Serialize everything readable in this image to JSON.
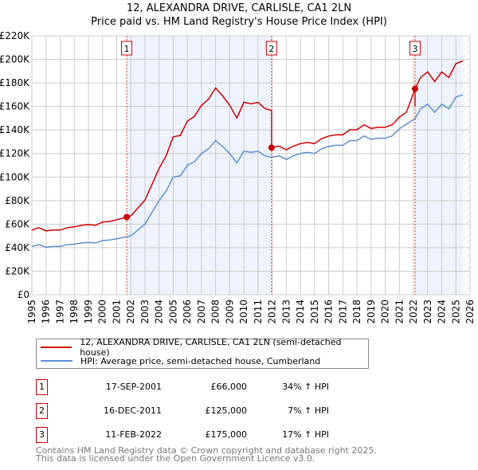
{
  "title": "12, ALEXANDRA DRIVE, CARLISLE, CA1 2LN",
  "subtitle": "Price paid vs. HM Land Registry's House Price Index (HPI)",
  "chart_data": {
    "type": "line",
    "xlim": [
      1995,
      2026
    ],
    "ylim": [
      0,
      220000
    ],
    "xticks": [
      "1995",
      "1996",
      "1997",
      "1998",
      "1999",
      "2000",
      "2001",
      "2002",
      "2003",
      "2004",
      "2005",
      "2006",
      "2007",
      "2008",
      "2009",
      "2010",
      "2011",
      "2012",
      "2013",
      "2014",
      "2015",
      "2016",
      "2017",
      "2018",
      "2019",
      "2020",
      "2021",
      "2022",
      "2023",
      "2024",
      "2025",
      "2026"
    ],
    "yticks": [
      "£0",
      "£20K",
      "£40K",
      "£60K",
      "£80K",
      "£100K",
      "£120K",
      "£140K",
      "£160K",
      "£180K",
      "£200K",
      "£220K"
    ],
    "hpi_x": [
      1995,
      1995.5,
      1996,
      1996.5,
      1997,
      1997.5,
      1998,
      1998.5,
      1999,
      1999.5,
      2000,
      2000.5,
      2001,
      2001.7,
      2002,
      2002.5,
      2003,
      2003.5,
      2004,
      2004.5,
      2005,
      2005.5,
      2006,
      2006.5,
      2007,
      2007.5,
      2008,
      2008.5,
      2009,
      2009.5,
      2010,
      2010.5,
      2011,
      2011.5,
      2011.96,
      2012.5,
      2013,
      2013.5,
      2014,
      2014.5,
      2015,
      2015.5,
      2016,
      2016.5,
      2017,
      2017.5,
      2018,
      2018.5,
      2019,
      2019.5,
      2020,
      2020.5,
      2021,
      2021.5,
      2022.1,
      2022.5,
      2023,
      2023.5,
      2024,
      2024.5,
      2025,
      2025.5
    ],
    "hpi_y": [
      41000,
      42500,
      40500,
      41000,
      41000,
      42500,
      43000,
      44000,
      44500,
      44000,
      46000,
      46500,
      47500,
      49200,
      50000,
      55000,
      60000,
      70000,
      80000,
      88000,
      100000,
      101000,
      110000,
      113000,
      120000,
      124000,
      131000,
      126000,
      120000,
      112000,
      122000,
      121000,
      122000,
      118000,
      116800,
      118000,
      115000,
      118000,
      120000,
      121000,
      120000,
      124000,
      126000,
      127000,
      127000,
      131000,
      131000,
      135000,
      132000,
      133000,
      133000,
      135000,
      141000,
      145000,
      149500,
      158000,
      162000,
      155000,
      162000,
      158000,
      168000,
      170000
    ],
    "series": [
      {
        "name": "12, ALEXANDRA DRIVE, CARLISLE, CA1 2LN (semi-detached house)",
        "color": "#cc0000"
      },
      {
        "name": "HPI: Average price, semi-detached house, Cumberland",
        "color": "#5b8fd4"
      }
    ],
    "sales": [
      {
        "n": "1",
        "x": 2001.71,
        "date": "17-SEP-2001",
        "price_value": 66000,
        "price": "£66,000",
        "hpi": "34% ↑ HPI"
      },
      {
        "n": "2",
        "x": 2011.96,
        "date": "16-DEC-2011",
        "price_value": 125000,
        "price": "£125,000",
        "hpi": "7% ↑ HPI"
      },
      {
        "n": "3",
        "x": 2022.11,
        "date": "11-FEB-2022",
        "price_value": 175000,
        "price": "£175,000",
        "hpi": "17% ↑ HPI"
      }
    ],
    "forecast_from": 2025.5
  },
  "footer1": "Contains HM Land Registry data © Crown copyright and database right 2025.",
  "footer2": "This data is licensed under the Open Government Licence v3.0."
}
